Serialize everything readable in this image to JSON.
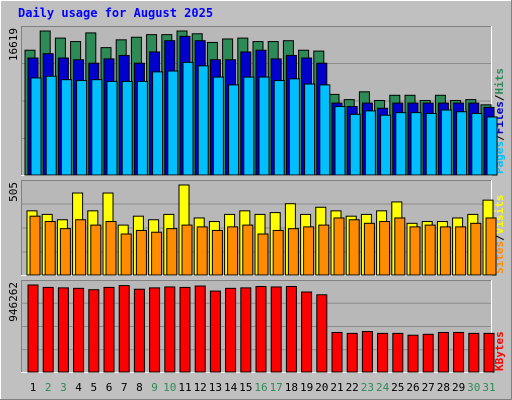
{
  "chart_data": [
    {
      "type": "bar",
      "title": "Daily usage for August 2025",
      "categories": [
        "1",
        "2",
        "3",
        "4",
        "5",
        "6",
        "7",
        "8",
        "9",
        "10",
        "11",
        "12",
        "13",
        "14",
        "15",
        "16",
        "17",
        "18",
        "19",
        "20",
        "21",
        "22",
        "23",
        "24",
        "25",
        "26",
        "27",
        "28",
        "29",
        "30",
        "31"
      ],
      "weekend_days": [
        "2",
        "3",
        "9",
        "10",
        "16",
        "17",
        "23",
        "24",
        "30",
        "31"
      ],
      "ylabel_max": "16619",
      "ylim": [
        0,
        16619
      ],
      "grid": true,
      "series": [
        {
          "name": "Hits",
          "color": "#2e8b57",
          "values": [
            14400,
            16619,
            15800,
            15400,
            16400,
            14700,
            15600,
            15900,
            16200,
            16200,
            16619,
            16300,
            15300,
            15700,
            15800,
            15400,
            15400,
            15500,
            14400,
            14300,
            9300,
            8700,
            9600,
            8600,
            9200,
            9200,
            8600,
            9200,
            8600,
            8700,
            8100
          ]
        },
        {
          "name": "Files",
          "color": "#0000cc",
          "values": [
            13500,
            14000,
            13500,
            13300,
            12900,
            13400,
            13800,
            12900,
            14200,
            15500,
            16000,
            15500,
            13300,
            13300,
            14200,
            14400,
            13400,
            13800,
            13500,
            12900,
            8300,
            7900,
            8300,
            7700,
            8300,
            8300,
            8300,
            8300,
            8300,
            8300,
            7800
          ]
        },
        {
          "name": "Pages",
          "color": "#00bfff",
          "values": [
            11200,
            11400,
            11000,
            10900,
            11000,
            10800,
            10800,
            10800,
            11900,
            12000,
            13000,
            12600,
            11300,
            10400,
            11300,
            11300,
            10900,
            11100,
            10500,
            10400,
            7900,
            7000,
            7400,
            6900,
            7200,
            7200,
            7100,
            7500,
            7300,
            7100,
            6700
          ]
        }
      ]
    },
    {
      "type": "bar",
      "ylabel_max": "505",
      "ylim": [
        0,
        505
      ],
      "grid": true,
      "series": [
        {
          "name": "Visits",
          "color": "#ffff00",
          "values": [
            360,
            340,
            310,
            460,
            360,
            460,
            280,
            330,
            310,
            340,
            505,
            320,
            300,
            340,
            360,
            340,
            350,
            400,
            340,
            380,
            360,
            330,
            340,
            360,
            410,
            290,
            300,
            300,
            320,
            340,
            420
          ]
        },
        {
          "name": "Sites",
          "color": "#ff8c00",
          "values": [
            330,
            300,
            260,
            310,
            280,
            300,
            230,
            250,
            240,
            260,
            280,
            270,
            250,
            270,
            280,
            230,
            250,
            260,
            270,
            280,
            320,
            310,
            290,
            300,
            320,
            270,
            280,
            270,
            270,
            290,
            320
          ]
        }
      ]
    },
    {
      "type": "bar",
      "ylabel_max": "946262",
      "ylim": [
        0,
        946262
      ],
      "grid": true,
      "series": [
        {
          "name": "KBytes",
          "color": "#ff0000",
          "values": [
            946262,
            920000,
            915000,
            910000,
            895000,
            920000,
            940000,
            900000,
            915000,
            925000,
            920000,
            935000,
            880000,
            910000,
            915000,
            930000,
            925000,
            930000,
            870000,
            840000,
            430000,
            420000,
            440000,
            420000,
            420000,
            400000,
            410000,
            430000,
            430000,
            420000,
            420000
          ]
        }
      ]
    }
  ]
}
